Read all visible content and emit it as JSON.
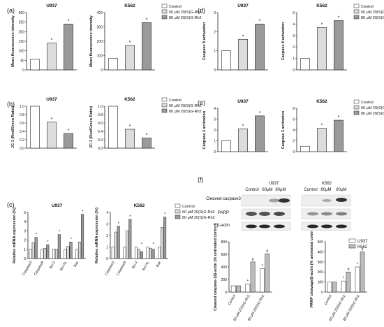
{
  "colors": {
    "control": "#ffffff",
    "mid": "#dcdcdc",
    "high": "#9a9a9a",
    "u937": "#ffffff",
    "k562": "#bdbdbd",
    "stroke": "#222222"
  },
  "legend_items": [
    "Control",
    "60 μM 20(S)G-Rh2",
    "80 μM 20(S)G-Rh2"
  ],
  "chart_data": [
    {
      "panel": "(a)",
      "type": "bar",
      "title": "U937",
      "ylabel": "Mean fluorescence intensity",
      "ylim": [
        0,
        300
      ],
      "yticks": [
        0,
        50,
        100,
        150,
        200,
        250,
        300
      ],
      "series": [
        {
          "values": [
            55,
            140,
            240
          ]
        }
      ],
      "annotations": [
        "",
        "*",
        "*"
      ]
    },
    {
      "panel": "(a)",
      "type": "bar",
      "title": "K562",
      "ylabel": "Mean fluorescence intensity",
      "ylim": [
        0,
        400
      ],
      "yticks": [
        0,
        100,
        200,
        300,
        400
      ],
      "series": [
        {
          "values": [
            80,
            170,
            330
          ]
        }
      ],
      "annotations": [
        "",
        "*",
        "*"
      ],
      "legend": "top-right"
    },
    {
      "panel": "(b)",
      "type": "bar",
      "title": "U937",
      "ylabel": "JC-1 (Red/Green Ratio)",
      "ylim": [
        0,
        1.0
      ],
      "yticks": [
        0.0,
        0.2,
        0.4,
        0.6,
        0.8,
        1.0
      ],
      "series": [
        {
          "values": [
            1.0,
            0.62,
            0.35
          ]
        }
      ],
      "annotations": [
        "",
        "*",
        "*"
      ]
    },
    {
      "panel": "(b)",
      "type": "bar",
      "title": "K562",
      "ylabel": "JC-1 (Red/Green Ratio)",
      "ylim": [
        0,
        1.0
      ],
      "yticks": [
        0.0,
        0.2,
        0.4,
        0.6,
        0.8,
        1.0
      ],
      "series": [
        {
          "values": [
            1.0,
            0.45,
            0.24
          ]
        }
      ],
      "annotations": [
        "",
        "*",
        "*"
      ],
      "legend": "top-right"
    },
    {
      "panel": "(c)",
      "type": "bar",
      "title": "U937",
      "ylabel": "Relative mRNA expression (%)",
      "ylim": [
        0,
        5
      ],
      "yticks": [
        0,
        1,
        2,
        3,
        4,
        5
      ],
      "categories": [
        "Caspase3",
        "Caspase9",
        "Bcl-2",
        "Bcl-XL",
        "Bax"
      ],
      "series": [
        {
          "values": [
            1,
            1,
            1,
            1,
            1
          ]
        },
        {
          "values": [
            1.7,
            1.1,
            1.0,
            1.3,
            1.8
          ]
        },
        {
          "values": [
            2.3,
            1.5,
            2.6,
            1.8,
            4.8
          ]
        }
      ],
      "annotations": [
        "*",
        "*",
        "*",
        "*",
        "*"
      ]
    },
    {
      "panel": "(c)",
      "type": "bar",
      "title": "K562",
      "ylabel": "Relative mRNA expression (%)",
      "ylim": [
        0,
        4
      ],
      "yticks": [
        0,
        1,
        2,
        3,
        4
      ],
      "categories": [
        "Caspase3",
        "Caspase9",
        "Bcl-2",
        "Bcl-XL",
        "Bax"
      ],
      "series": [
        {
          "values": [
            1,
            1,
            1,
            1,
            1
          ]
        },
        {
          "values": [
            2.3,
            2.4,
            0.8,
            0.9,
            2.7
          ]
        },
        {
          "values": [
            2.8,
            3.4,
            0.6,
            0.8,
            3.6
          ]
        }
      ],
      "annotations": [
        "*",
        "*",
        "*",
        "*",
        "*"
      ],
      "legend": "top-right"
    },
    {
      "panel": "(d)",
      "type": "bar",
      "title": "U937",
      "ylabel": "Caspase 9 activation",
      "ylim": [
        0,
        3
      ],
      "yticks": [
        0,
        1,
        2,
        3
      ],
      "series": [
        {
          "values": [
            1.0,
            1.6,
            2.4
          ]
        }
      ],
      "annotations": [
        "",
        "*",
        "*"
      ]
    },
    {
      "panel": "(d)",
      "type": "bar",
      "title": "K562",
      "ylabel": "Caspase 9 activation",
      "ylim": [
        0,
        5
      ],
      "yticks": [
        0,
        1,
        2,
        3,
        4,
        5
      ],
      "series": [
        {
          "values": [
            1.0,
            3.7,
            4.3
          ]
        }
      ],
      "annotations": [
        "",
        "*",
        "*"
      ],
      "legend": "top-right"
    },
    {
      "panel": "(e)",
      "type": "bar",
      "title": "U937",
      "ylabel": "Caspase 3 activation",
      "ylim": [
        0,
        4
      ],
      "yticks": [
        0,
        1,
        2,
        3,
        4
      ],
      "series": [
        {
          "values": [
            1.0,
            2.1,
            3.3
          ]
        }
      ],
      "annotations": [
        "",
        "*",
        "*"
      ]
    },
    {
      "panel": "(e)",
      "type": "bar",
      "title": "K562",
      "ylabel": "Caspase 3 activation",
      "ylim": [
        0,
        8
      ],
      "yticks": [
        0,
        2,
        4,
        6,
        8
      ],
      "series": [
        {
          "values": [
            1.0,
            4.3,
            5.8
          ]
        }
      ],
      "annotations": [
        "",
        "*",
        "*"
      ],
      "legend": "top-right"
    },
    {
      "panel": "(f)",
      "type": "bar",
      "ylabel": "Cleaved caspase-3/β-actin (% untreated control)",
      "ylim": [
        0,
        800
      ],
      "yticks": [
        0,
        200,
        400,
        600,
        800
      ],
      "categories": [
        "Control",
        "60 μM 20(S)G-Rh2",
        "80 μM 20(S)G-Rh2"
      ],
      "series": [
        {
          "name": "U937",
          "values": [
            100,
            130,
            370
          ]
        },
        {
          "name": "K562",
          "values": [
            100,
            480,
            610
          ]
        }
      ],
      "annotations": [
        "",
        "*|#",
        "*|#"
      ]
    },
    {
      "panel": "(f)",
      "type": "bar",
      "ylabel": "PARP cleavage/β-actin (% untreated control)",
      "ylim": [
        0,
        500
      ],
      "yticks": [
        0,
        100,
        200,
        300,
        400,
        500
      ],
      "categories": [
        "Control",
        "60 μM 20(S)G-Rh2",
        "80 μM 20(S)G-Rh2"
      ],
      "series": [
        {
          "name": "U937",
          "values": [
            100,
            110,
            250
          ]
        },
        {
          "name": "K562",
          "values": [
            100,
            200,
            400
          ]
        }
      ],
      "annotations": [
        "",
        "*|#",
        "*|#"
      ],
      "legend": "top-right"
    }
  ],
  "western_blot": {
    "cell_lines": [
      "U937",
      "K562"
    ],
    "lanes": [
      "Control",
      "60μM",
      "80μM"
    ],
    "rows": [
      "Cleaved-caspase3",
      "PARP",
      "β-actin"
    ]
  }
}
